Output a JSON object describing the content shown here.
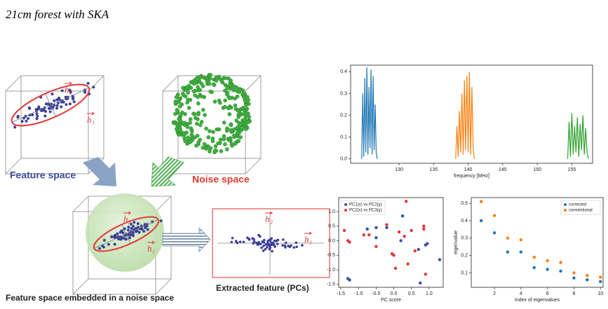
{
  "title": "21cm forest with SKA",
  "diagram": {
    "feature_space_label": "Feature space",
    "noise_space_label": "Noise space",
    "embedded_label": "Feature space embedded in a noise space",
    "extracted_label": "Extracted feature (PCs)",
    "feature_space_vectors": [
      "h₂",
      "h₁"
    ],
    "embedded_vectors": [
      "h₂",
      "h₁"
    ],
    "pcs_vectors": [
      "h₂",
      "h₁"
    ]
  },
  "chart_data": [
    {
      "type": "line",
      "xlabel": "frequency [MHz]",
      "xlim": [
        123,
        158
      ],
      "xticks": [
        130,
        135,
        140,
        145,
        150,
        155
      ],
      "ylim": [
        -0.02,
        0.43
      ],
      "yticks": [
        {
          "value": 0,
          "label": "0.0"
        },
        0.1,
        0.2,
        0.3,
        0.4
      ],
      "series": [
        {
          "color": "#1f77b4",
          "x": [
            124.6,
            124.75,
            124.9,
            125.05,
            125.2,
            125.35,
            125.5,
            125.65,
            125.8,
            125.95,
            126.1,
            126.25,
            126.4,
            126.55,
            126.7,
            126.85
          ],
          "values": [
            0.0,
            0.3,
            0.01,
            0.37,
            0.03,
            0.42,
            0.02,
            0.33,
            0.05,
            0.41,
            0.02,
            0.38,
            0.04,
            0.25,
            0.03,
            0.0
          ]
        },
        {
          "color": "#ff7f0e",
          "x": [
            138.2,
            138.38,
            138.56,
            138.74,
            138.92,
            139.1,
            139.28,
            139.46,
            139.64,
            139.82,
            140.0,
            140.18,
            140.36,
            140.54,
            140.72,
            140.9
          ],
          "values": [
            0.0,
            0.15,
            0.01,
            0.22,
            0.03,
            0.3,
            0.02,
            0.36,
            0.04,
            0.38,
            0.03,
            0.4,
            0.02,
            0.33,
            0.05,
            0.0
          ]
        },
        {
          "color": "#2ca02c",
          "x": [
            154.4,
            154.6,
            154.8,
            155.0,
            155.2,
            155.4,
            155.6,
            155.8,
            156.0,
            156.2,
            156.4,
            156.6,
            156.8,
            157.0,
            157.2,
            157.4
          ],
          "values": [
            0.0,
            0.17,
            0.01,
            0.21,
            0.02,
            0.15,
            0.03,
            0.19,
            0.01,
            0.16,
            0.04,
            0.2,
            0.02,
            0.14,
            0.03,
            0.0
          ]
        }
      ]
    },
    {
      "type": "scatter",
      "xlabel": "PC score",
      "legend": "upper left",
      "xlim": [
        -1.56,
        1.4
      ],
      "xticks": [
        -1.5,
        {
          "value": -1,
          "label": "-1.0"
        },
        -0.5,
        {
          "value": 0,
          "label": "0.0"
        },
        0.5,
        {
          "value": 1,
          "label": "1.0"
        }
      ],
      "ylim": [
        -1.6,
        1.48
      ],
      "yticks": [
        {
          "value": 1,
          "label": "1.0"
        },
        0.5,
        {
          "value": 0,
          "label": "0.0"
        },
        -0.5,
        {
          "value": -1,
          "label": "-1.0"
        },
        -1.5
      ],
      "series": [
        {
          "name": "PC1(x) vs PC2(y)",
          "color": "#3b4fa8",
          "x": [
            -1.3,
            -1.25,
            -0.75,
            -0.5,
            -0.5,
            -0.2,
            0.25,
            0.2,
            0.7,
            0.75,
            0.9,
            1.3,
            0.95
          ],
          "values": [
            -1.3,
            -1.35,
            0.4,
            0.1,
            0.45,
            0.45,
            0.85,
            0.0,
            -0.3,
            -1.45,
            -0.15,
            -0.65,
            -0.1
          ]
        },
        {
          "name": "PC2(x) vs PC3(y)",
          "color": "#e8353a",
          "x": [
            -1.4,
            -1.3,
            -1.25,
            -0.85,
            -0.7,
            -0.5,
            -0.05,
            0.0,
            0.05,
            0.15,
            0.35,
            0.4,
            0.5,
            0.6,
            0.85,
            0.85,
            0.9,
            0.3,
            -0.2
          ],
          "values": [
            0.35,
            0.0,
            -0.05,
            0.2,
            0.2,
            -0.2,
            -0.45,
            -0.5,
            -0.95,
            0.3,
            1.35,
            -0.8,
            0.35,
            -0.35,
            0.5,
            0.4,
            -1.15,
            0.15,
            0.55
          ]
        }
      ]
    },
    {
      "type": "scatter",
      "xlabel": "Index of eigenvalues",
      "ylabel": "eigenvalue",
      "legend": "upper right",
      "xlim": [
        0.25,
        10.2
      ],
      "xticks": [
        2,
        4,
        6,
        8,
        10
      ],
      "ylim": [
        0.017,
        0.533
      ],
      "yticks": [
        0.1,
        0.2,
        0.3,
        0.4,
        0.5
      ],
      "x": [
        1,
        2,
        3,
        4,
        5,
        6,
        7,
        8,
        9,
        10
      ],
      "series": [
        {
          "name": "corrected",
          "color": "#1f77b4",
          "values": [
            0.4,
            0.33,
            0.22,
            0.22,
            0.13,
            0.12,
            0.11,
            0.07,
            0.06,
            0.05
          ]
        },
        {
          "name": "conventional",
          "color": "#ff7f0e",
          "values": [
            0.51,
            0.43,
            0.3,
            0.29,
            0.19,
            0.17,
            0.16,
            0.1,
            0.085,
            0.075
          ]
        }
      ]
    }
  ]
}
